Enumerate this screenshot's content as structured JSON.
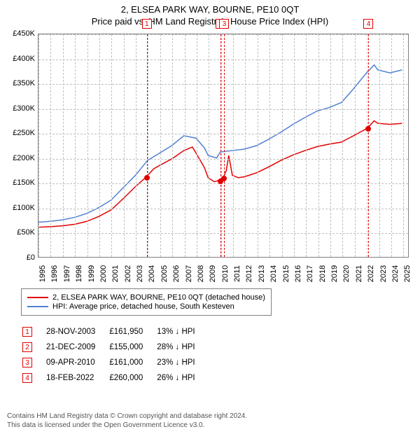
{
  "title": "2, ELSEA PARK WAY, BOURNE, PE10 0QT",
  "subtitle": "Price paid vs. HM Land Registry's House Price Index (HPI)",
  "chart": {
    "type": "line",
    "background_color": "#ffffff",
    "grid_color": "#c0c0c0",
    "border_color": "#808080",
    "title_fontsize": 13,
    "label_fontsize": 11,
    "sale_marker_color": "#e00000",
    "y": {
      "min": 0,
      "max": 450000,
      "tick_step": 50000,
      "labels": [
        "£0",
        "£50K",
        "£100K",
        "£150K",
        "£200K",
        "£250K",
        "£300K",
        "£350K",
        "£400K",
        "£450K"
      ]
    },
    "x": {
      "min": 1995,
      "max": 2025.5,
      "labels": [
        "1995",
        "1996",
        "1997",
        "1998",
        "1999",
        "2000",
        "2001",
        "2002",
        "2003",
        "2004",
        "2005",
        "2006",
        "2007",
        "2008",
        "2009",
        "2010",
        "2011",
        "2012",
        "2013",
        "2014",
        "2015",
        "2016",
        "2017",
        "2018",
        "2019",
        "2020",
        "2021",
        "2022",
        "2023",
        "2024",
        "2025"
      ]
    },
    "series": [
      {
        "name": "2, ELSEA PARK WAY, BOURNE, PE10 0QT (detached house)",
        "color": "#e00000",
        "line_width": 1.5,
        "points": [
          [
            1995,
            60000
          ],
          [
            1996,
            61000
          ],
          [
            1997,
            63000
          ],
          [
            1998,
            66000
          ],
          [
            1999,
            72000
          ],
          [
            2000,
            82000
          ],
          [
            2001,
            95000
          ],
          [
            2002,
            118000
          ],
          [
            2003,
            142000
          ],
          [
            2003.91,
            161950
          ],
          [
            2004.5,
            178000
          ],
          [
            2005,
            185000
          ],
          [
            2006,
            198000
          ],
          [
            2007,
            215000
          ],
          [
            2007.7,
            222000
          ],
          [
            2008,
            210000
          ],
          [
            2008.7,
            180000
          ],
          [
            2009,
            160000
          ],
          [
            2009.5,
            152000
          ],
          [
            2009.97,
            155000
          ],
          [
            2010.1,
            157000
          ],
          [
            2010.27,
            161000
          ],
          [
            2010.5,
            175000
          ],
          [
            2010.7,
            205000
          ],
          [
            2011,
            165000
          ],
          [
            2011.5,
            160000
          ],
          [
            2012,
            162000
          ],
          [
            2013,
            170000
          ],
          [
            2014,
            182000
          ],
          [
            2015,
            195000
          ],
          [
            2016,
            206000
          ],
          [
            2017,
            215000
          ],
          [
            2018,
            223000
          ],
          [
            2019,
            228000
          ],
          [
            2020,
            232000
          ],
          [
            2021,
            245000
          ],
          [
            2022.13,
            260000
          ],
          [
            2022.7,
            275000
          ],
          [
            2023,
            270000
          ],
          [
            2024,
            268000
          ],
          [
            2025,
            270000
          ]
        ]
      },
      {
        "name": "HPI: Average price, detached house, South Kesteven",
        "color": "#5080d0",
        "line_width": 1.5,
        "points": [
          [
            1995,
            70000
          ],
          [
            1996,
            72000
          ],
          [
            1997,
            75000
          ],
          [
            1998,
            80000
          ],
          [
            1999,
            88000
          ],
          [
            2000,
            100000
          ],
          [
            2001,
            115000
          ],
          [
            2002,
            140000
          ],
          [
            2003,
            165000
          ],
          [
            2004,
            195000
          ],
          [
            2005,
            210000
          ],
          [
            2006,
            225000
          ],
          [
            2007,
            245000
          ],
          [
            2008,
            240000
          ],
          [
            2008.7,
            220000
          ],
          [
            2009,
            205000
          ],
          [
            2009.7,
            200000
          ],
          [
            2010,
            212000
          ],
          [
            2011,
            215000
          ],
          [
            2012,
            218000
          ],
          [
            2013,
            225000
          ],
          [
            2014,
            238000
          ],
          [
            2015,
            252000
          ],
          [
            2016,
            268000
          ],
          [
            2017,
            282000
          ],
          [
            2018,
            295000
          ],
          [
            2019,
            302000
          ],
          [
            2020,
            312000
          ],
          [
            2021,
            340000
          ],
          [
            2022,
            370000
          ],
          [
            2022.7,
            388000
          ],
          [
            2023,
            378000
          ],
          [
            2024,
            372000
          ],
          [
            2025,
            378000
          ]
        ]
      }
    ],
    "sale_events": [
      {
        "n": "1",
        "year": 2003.91,
        "price": 161950
      },
      {
        "n": "2",
        "year": 2009.97,
        "price": 155000
      },
      {
        "n": "3",
        "year": 2010.27,
        "price": 161000
      },
      {
        "n": "4",
        "year": 2022.13,
        "price": 260000
      }
    ]
  },
  "legend": {
    "items": [
      {
        "label": "2, ELSEA PARK WAY, BOURNE, PE10 0QT (detached house)",
        "color": "#e00000"
      },
      {
        "label": "HPI: Average price, detached house, South Kesteven",
        "color": "#5080d0"
      }
    ]
  },
  "sales_table": {
    "rows": [
      {
        "n": "1",
        "date": "28-NOV-2003",
        "price": "£161,950",
        "diff": "13% ↓ HPI"
      },
      {
        "n": "2",
        "date": "21-DEC-2009",
        "price": "£155,000",
        "diff": "28% ↓ HPI"
      },
      {
        "n": "3",
        "date": "09-APR-2010",
        "price": "£161,000",
        "diff": "23% ↓ HPI"
      },
      {
        "n": "4",
        "date": "18-FEB-2022",
        "price": "£260,000",
        "diff": "26% ↓ HPI"
      }
    ]
  },
  "footer": {
    "line1": "Contains HM Land Registry data © Crown copyright and database right 2024.",
    "line2": "This data is licensed under the Open Government Licence v3.0."
  }
}
